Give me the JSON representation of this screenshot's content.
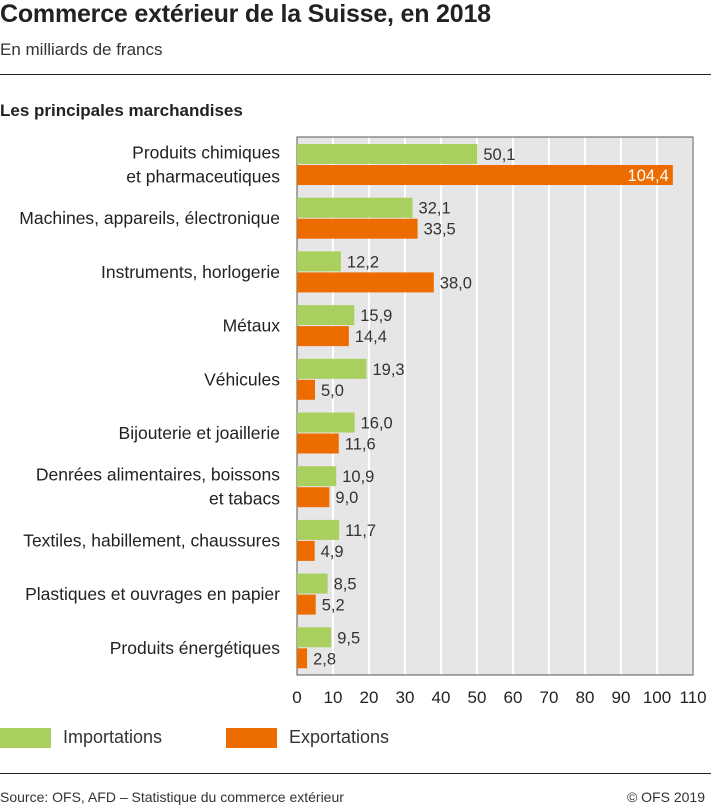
{
  "header": {
    "title": "Commerce extérieur de la Suisse, en 2018",
    "subtitle": "En milliards de francs",
    "section": "Les principales marchandises"
  },
  "chart_data": {
    "type": "bar",
    "orientation": "horizontal",
    "title": "Commerce extérieur de la Suisse, en 2018",
    "subtitle": "En milliards de francs",
    "xlim": [
      0,
      110
    ],
    "x_ticks": [
      0,
      10,
      20,
      30,
      40,
      50,
      60,
      70,
      80,
      90,
      100,
      110
    ],
    "grid": true,
    "legend_position": "bottom-left",
    "categories": [
      [
        "Produits chimiques",
        "et pharmaceutiques"
      ],
      [
        "Machines, appareils, électronique"
      ],
      [
        "Instruments, horlogerie"
      ],
      [
        "Métaux"
      ],
      [
        "Véhicules"
      ],
      [
        "Bijouterie et joaillerie"
      ],
      [
        "Denrées alimentaires, boissons",
        "et tabacs"
      ],
      [
        "Textiles, habillement, chaussures"
      ],
      [
        "Plastiques et ouvrages en papier"
      ],
      [
        "Produits énergétiques"
      ]
    ],
    "series": [
      {
        "name": "Importations",
        "color": "#a9d05f",
        "values": [
          50.1,
          32.1,
          12.2,
          15.9,
          19.3,
          16.0,
          10.9,
          11.7,
          8.5,
          9.5
        ],
        "labels": [
          "50,1",
          "32,1",
          "12,2",
          "15,9",
          "19,3",
          "16,0",
          "10,9",
          "11,7",
          "8,5",
          "9,5"
        ]
      },
      {
        "name": "Exportations",
        "color": "#ec6c00",
        "values": [
          104.4,
          33.5,
          38.0,
          14.4,
          5.0,
          11.6,
          9.0,
          4.9,
          5.2,
          2.8
        ],
        "labels": [
          "104,4",
          "33,5",
          "38,0",
          "14,4",
          "5,0",
          "11,6",
          "9,0",
          "4,9",
          "5,2",
          "2,8"
        ]
      }
    ]
  },
  "footer": {
    "source": "Source: OFS, AFD – Statistique du commerce extérieur",
    "copyright": "© OFS 2019"
  }
}
